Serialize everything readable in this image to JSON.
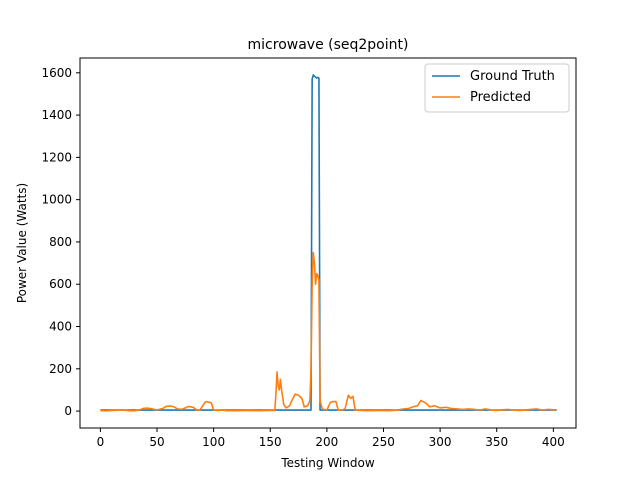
{
  "chart_data": {
    "type": "line",
    "title": "microwave (seq2point)",
    "xlabel": "Testing Window",
    "ylabel": "Power Value (Watts)",
    "xlim": [
      -18,
      420
    ],
    "ylim": [
      -80,
      1670
    ],
    "xticks": [
      0,
      50,
      100,
      150,
      200,
      250,
      300,
      350,
      400
    ],
    "yticks": [
      0,
      200,
      400,
      600,
      800,
      1000,
      1200,
      1400,
      1600
    ],
    "grid": false,
    "legend_position": "top-right",
    "series": [
      {
        "name": "Ground Truth",
        "color": "#1f77b4",
        "points": [
          [
            0,
            5
          ],
          [
            100,
            5
          ],
          [
            150,
            5
          ],
          [
            186,
            5
          ],
          [
            187,
            1570
          ],
          [
            188,
            1590
          ],
          [
            190,
            1580
          ],
          [
            191,
            1575
          ],
          [
            192,
            1578
          ],
          [
            193,
            1575
          ],
          [
            194,
            5
          ],
          [
            250,
            5
          ],
          [
            300,
            5
          ],
          [
            350,
            5
          ],
          [
            403,
            5
          ]
        ]
      },
      {
        "name": "Predicted",
        "color": "#ff7f0e",
        "points": [
          [
            0,
            2
          ],
          [
            5,
            1
          ],
          [
            10,
            3
          ],
          [
            15,
            4
          ],
          [
            20,
            6
          ],
          [
            25,
            2
          ],
          [
            30,
            1
          ],
          [
            35,
            6
          ],
          [
            38,
            13
          ],
          [
            42,
            14
          ],
          [
            46,
            10
          ],
          [
            50,
            5
          ],
          [
            55,
            12
          ],
          [
            58,
            22
          ],
          [
            62,
            24
          ],
          [
            65,
            20
          ],
          [
            68,
            10
          ],
          [
            72,
            8
          ],
          [
            75,
            15
          ],
          [
            78,
            22
          ],
          [
            82,
            18
          ],
          [
            85,
            5
          ],
          [
            88,
            6
          ],
          [
            91,
            30
          ],
          [
            93,
            45
          ],
          [
            96,
            42
          ],
          [
            98,
            38
          ],
          [
            100,
            5
          ],
          [
            104,
            3
          ],
          [
            108,
            5
          ],
          [
            112,
            2
          ],
          [
            120,
            2
          ],
          [
            130,
            3
          ],
          [
            140,
            2
          ],
          [
            150,
            3
          ],
          [
            154,
            3
          ],
          [
            155,
            80
          ],
          [
            156,
            185
          ],
          [
            157,
            120
          ],
          [
            158,
            100
          ],
          [
            159,
            150
          ],
          [
            160,
            100
          ],
          [
            162,
            30
          ],
          [
            164,
            15
          ],
          [
            167,
            25
          ],
          [
            170,
            60
          ],
          [
            172,
            80
          ],
          [
            175,
            75
          ],
          [
            178,
            60
          ],
          [
            180,
            20
          ],
          [
            183,
            25
          ],
          [
            185,
            50
          ],
          [
            186,
            200
          ],
          [
            187,
            600
          ],
          [
            188,
            750
          ],
          [
            189,
            700
          ],
          [
            190,
            600
          ],
          [
            191,
            650
          ],
          [
            192,
            640
          ],
          [
            193,
            620
          ],
          [
            194,
            50
          ],
          [
            196,
            10
          ],
          [
            200,
            5
          ],
          [
            203,
            40
          ],
          [
            205,
            45
          ],
          [
            208,
            45
          ],
          [
            210,
            5
          ],
          [
            213,
            5
          ],
          [
            216,
            10
          ],
          [
            219,
            75
          ],
          [
            221,
            60
          ],
          [
            223,
            70
          ],
          [
            225,
            5
          ],
          [
            235,
            2
          ],
          [
            245,
            3
          ],
          [
            255,
            2
          ],
          [
            262,
            5
          ],
          [
            268,
            10
          ],
          [
            272,
            12
          ],
          [
            276,
            20
          ],
          [
            280,
            25
          ],
          [
            283,
            50
          ],
          [
            285,
            45
          ],
          [
            288,
            35
          ],
          [
            291,
            20
          ],
          [
            295,
            25
          ],
          [
            300,
            15
          ],
          [
            305,
            18
          ],
          [
            310,
            12
          ],
          [
            315,
            10
          ],
          [
            320,
            8
          ],
          [
            325,
            10
          ],
          [
            330,
            8
          ],
          [
            335,
            5
          ],
          [
            340,
            10
          ],
          [
            345,
            5
          ],
          [
            350,
            3
          ],
          [
            355,
            6
          ],
          [
            360,
            8
          ],
          [
            365,
            4
          ],
          [
            370,
            3
          ],
          [
            375,
            5
          ],
          [
            380,
            8
          ],
          [
            385,
            10
          ],
          [
            390,
            5
          ],
          [
            395,
            8
          ],
          [
            400,
            6
          ],
          [
            403,
            5
          ]
        ]
      }
    ]
  }
}
